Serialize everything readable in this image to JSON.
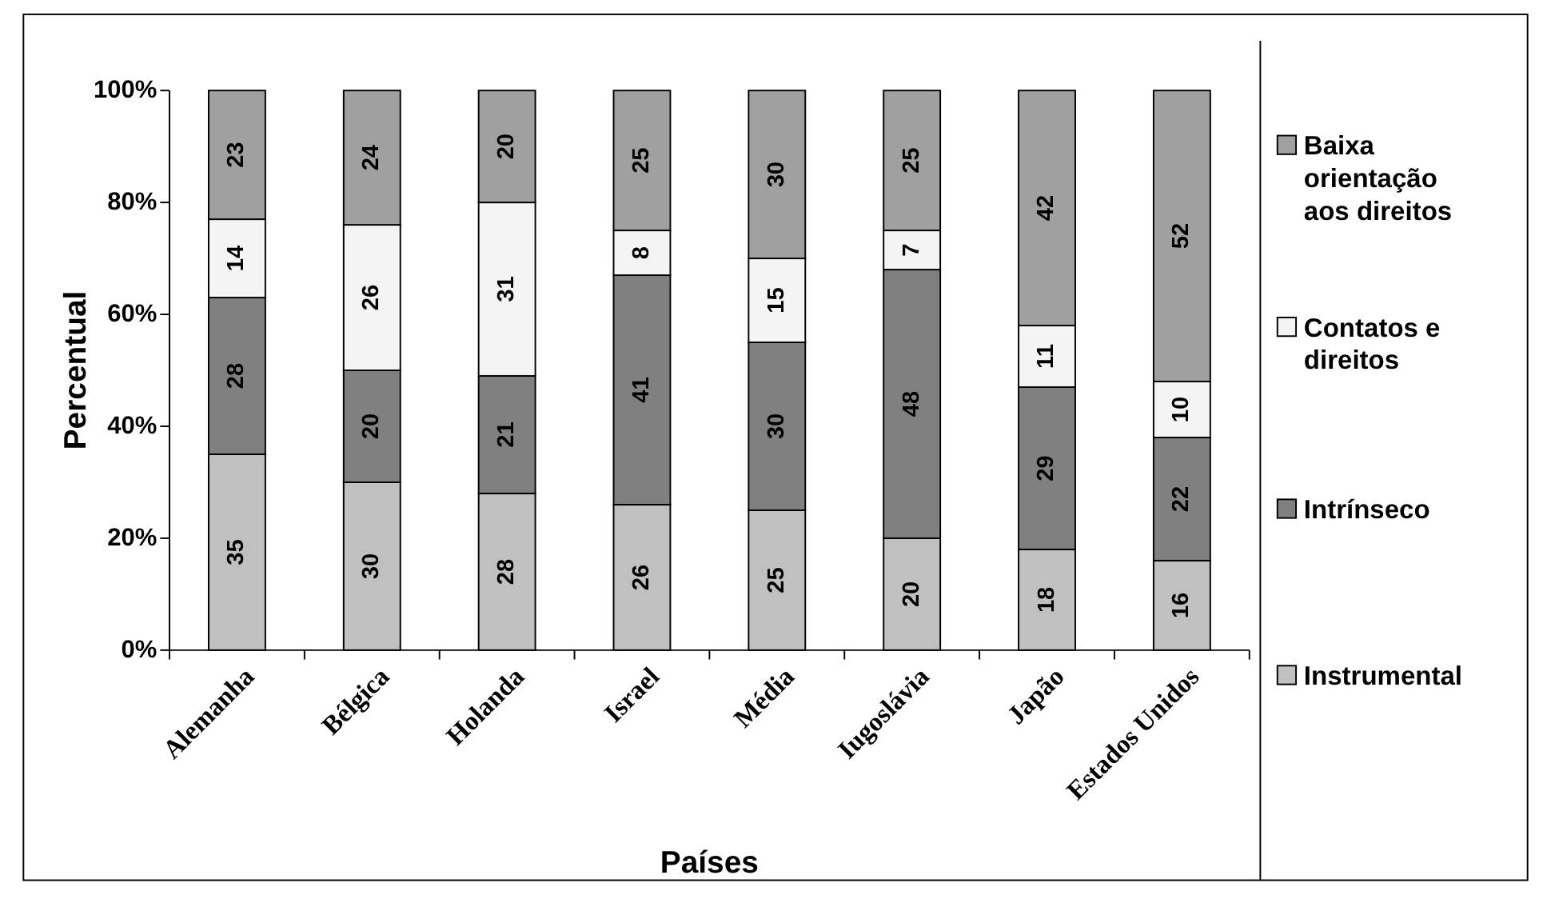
{
  "chart_data": {
    "type": "bar",
    "stacked": true,
    "xlabel": "Países",
    "ylabel": "Percentual",
    "categories": [
      "Alemanha",
      "Bélgica",
      "Holanda",
      "Israel",
      "Média",
      "Iugoslávia",
      "Japão",
      "Estados Unidos"
    ],
    "series": [
      {
        "name": "Instrumental",
        "color": "#c0c0c0",
        "values": [
          35,
          30,
          28,
          26,
          25,
          20,
          18,
          16
        ]
      },
      {
        "name": "Intrínseco",
        "color": "#808080",
        "values": [
          28,
          20,
          21,
          41,
          30,
          48,
          29,
          22
        ]
      },
      {
        "name": "Contatos e direitos",
        "color": "#f4f4f4",
        "values": [
          14,
          26,
          31,
          8,
          15,
          7,
          11,
          10
        ]
      },
      {
        "name": "Baixa orientação aos direitos",
        "color": "#a0a0a0",
        "values": [
          23,
          24,
          20,
          25,
          30,
          25,
          42,
          52
        ]
      }
    ],
    "ylim": [
      0,
      100
    ],
    "yticks": [
      {
        "value": 0,
        "label": "0%"
      },
      {
        "value": 20,
        "label": "20%"
      },
      {
        "value": 40,
        "label": "40%"
      },
      {
        "value": 60,
        "label": "60%"
      },
      {
        "value": 80,
        "label": "80%"
      },
      {
        "value": 100,
        "label": "100%"
      }
    ],
    "data_labels": true,
    "legend": "right",
    "grid": false
  }
}
